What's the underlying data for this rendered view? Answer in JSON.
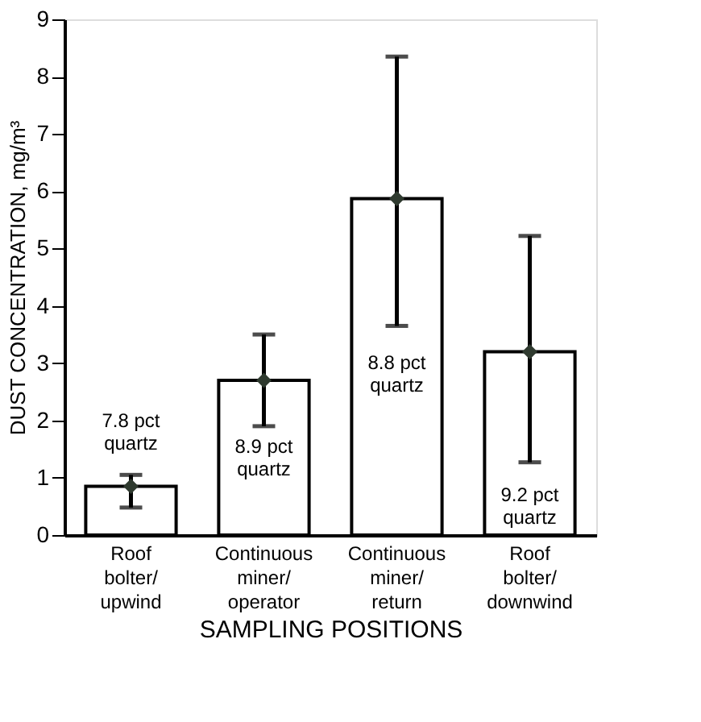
{
  "chart_data": {
    "type": "bar",
    "xlabel": "SAMPLING POSITIONS",
    "ylabel": "DUST CONCENTRATION, mg/m³",
    "categories": [
      "Roof bolter/ upwind",
      "Continuous miner/ operator",
      "Continuous miner/ return",
      "Roof bolter/ downwind"
    ],
    "series": [
      {
        "color": "#ffffff",
        "values": [
          0.85,
          2.7,
          5.87,
          3.2
        ],
        "errors": [
          [
            0.48,
            1.05
          ],
          [
            1.9,
            3.5
          ],
          [
            3.65,
            8.35
          ],
          [
            1.27,
            5.22
          ]
        ]
      },
      {
        "type": "scatter",
        "color": "#2f3a2f",
        "marker": "diamond",
        "x": [
          "Roof bolter/ upwind",
          "Continuous miner/ operator",
          "Continuous miner/ return",
          "Roof bolter/ downwind"
        ],
        "values": [
          0.85,
          2.7,
          5.87,
          3.2
        ]
      }
    ],
    "ylim": [
      0,
      9
    ],
    "yticks": [
      0,
      1,
      2,
      3,
      4,
      5,
      6,
      7,
      8,
      9
    ],
    "grid": false,
    "annotations": [
      "7.8 pct quartz",
      "8.9 pct quartz",
      "8.8 pct quartz",
      "9.2 pct quartz"
    ]
  }
}
